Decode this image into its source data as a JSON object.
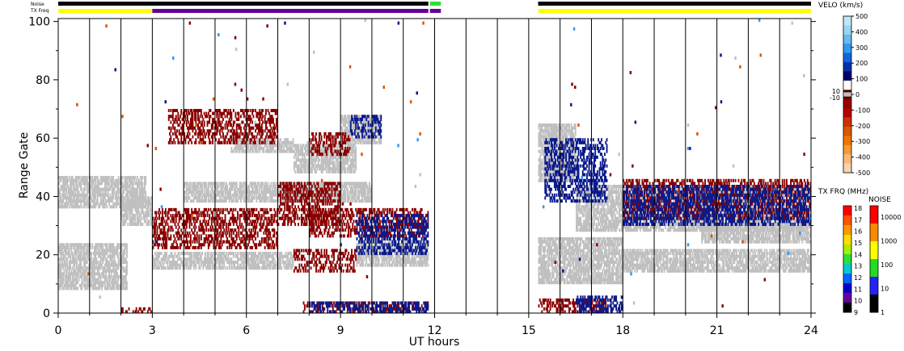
{
  "chart_data": {
    "type": "heatmap",
    "title": "",
    "xlabel": "UT hours",
    "ylabel": "Range Gate",
    "xlim": [
      0,
      24
    ],
    "ylim": [
      0,
      101
    ],
    "x_ticks": [
      "0",
      "3",
      "6",
      "9",
      "12",
      "15",
      "18",
      "21",
      "24"
    ],
    "x_tick_values": [
      0,
      3,
      6,
      9,
      12,
      15,
      18,
      21,
      24
    ],
    "y_ticks": [
      "0",
      "20",
      "40",
      "60",
      "80",
      "100"
    ],
    "y_tick_values": [
      0,
      20,
      40,
      60,
      80,
      100
    ],
    "grid_x_hours": [
      1,
      2,
      3,
      4,
      5,
      6,
      7,
      8,
      9,
      10,
      11,
      12,
      13,
      14,
      15,
      16,
      17,
      18,
      19,
      20,
      21,
      22,
      23
    ],
    "status_bars": {
      "noise": {
        "label": "Noise",
        "segments": [
          {
            "start": 0,
            "end": 11.8,
            "color": "#000000"
          },
          {
            "start": 11.85,
            "end": 12.2,
            "color": "#33dd33"
          },
          {
            "start": 15.3,
            "end": 24,
            "color": "#000000"
          }
        ]
      },
      "txfreq": {
        "label": "TX Freq",
        "segments": [
          {
            "start": 0,
            "end": 3.0,
            "color": "#ffff00"
          },
          {
            "start": 3.0,
            "end": 11.8,
            "color": "#660099"
          },
          {
            "start": 11.85,
            "end": 12.2,
            "color": "#660099"
          },
          {
            "start": 15.3,
            "end": 24,
            "color": "#ffff00"
          }
        ]
      }
    },
    "velocity_scale": {
      "label": "VELO (km/s)",
      "ticks": [
        "500",
        "400",
        "300",
        "200",
        "100",
        "0",
        "-100",
        "-200",
        "-300",
        "-400",
        "-500"
      ],
      "tick_values": [
        500,
        400,
        300,
        200,
        100,
        0,
        -100,
        -200,
        -300,
        -400,
        -500
      ],
      "ground_scatter_ticks": [
        "10",
        "-10"
      ],
      "colors": [
        "#bfe6f7",
        "#99d6f0",
        "#66bbf0",
        "#3399ee",
        "#1166dd",
        "#0033aa",
        "#000066",
        "#ffffff",
        "#660000",
        "#990000",
        "#b30000",
        "#cc3300",
        "#dd5500",
        "#ee7700",
        "#f59933",
        "#f9b877",
        "#fbd5aa"
      ]
    },
    "txfreq_scale": {
      "label": "TX FRQ (MHz)",
      "ticks": [
        "18",
        "17",
        "16",
        "15",
        "14",
        "13",
        "12",
        "11",
        "10",
        "9"
      ],
      "colors": [
        "#ff0000",
        "#ff5500",
        "#ff9900",
        "#ffdd00",
        "#aaee00",
        "#33dd33",
        "#00cccc",
        "#0066ff",
        "#0000cc",
        "#660099",
        "#000000"
      ]
    },
    "noise_scale": {
      "label": "NOISE",
      "ticks": [
        "10000",
        "1000",
        "100",
        "10",
        "1"
      ],
      "colors": [
        "#ff0000",
        "#ff8800",
        "#ffff00",
        "#22dd22",
        "#2222ff",
        "#000000"
      ]
    },
    "series": [
      {
        "kind": "ground-scatter",
        "color": "#c0c0c0",
        "bands": [
          {
            "t0": 0,
            "t1": 2.8,
            "g0": 36,
            "g1": 47
          },
          {
            "t0": 0,
            "t1": 2.2,
            "g0": 8,
            "g1": 24
          },
          {
            "t0": 2.0,
            "t1": 3.0,
            "g0": 30,
            "g1": 40
          },
          {
            "t0": 3.0,
            "t1": 7.5,
            "g0": 15,
            "g1": 21
          },
          {
            "t0": 4.0,
            "t1": 10.0,
            "g0": 38,
            "g1": 45
          },
          {
            "t0": 5.5,
            "t1": 7.5,
            "g0": 55,
            "g1": 60
          },
          {
            "t0": 7.5,
            "t1": 9.5,
            "g0": 48,
            "g1": 58
          },
          {
            "t0": 9.0,
            "t1": 10.3,
            "g0": 58,
            "g1": 68
          },
          {
            "t0": 9.5,
            "t1": 11.8,
            "g0": 16,
            "g1": 25
          },
          {
            "t0": 15.3,
            "t1": 16.5,
            "g0": 45,
            "g1": 65
          },
          {
            "t0": 16.5,
            "t1": 24,
            "g0": 28,
            "g1": 44
          },
          {
            "t0": 15.3,
            "t1": 18.0,
            "g0": 10,
            "g1": 26
          },
          {
            "t0": 18.0,
            "t1": 24,
            "g0": 14,
            "g1": 22
          },
          {
            "t0": 20.5,
            "t1": 24,
            "g0": 24,
            "g1": 30
          }
        ]
      },
      {
        "kind": "negative-velocity",
        "color": "#8b0000",
        "bands": [
          {
            "t0": 3.5,
            "t1": 7.0,
            "g0": 58,
            "g1": 70
          },
          {
            "t0": 3.0,
            "t1": 7.0,
            "g0": 22,
            "g1": 36
          },
          {
            "t0": 7.0,
            "t1": 9.0,
            "g0": 30,
            "g1": 45
          },
          {
            "t0": 7.5,
            "t1": 9.5,
            "g0": 14,
            "g1": 22
          },
          {
            "t0": 8.0,
            "t1": 11.8,
            "g0": 26,
            "g1": 36
          },
          {
            "t0": 8.0,
            "t1": 9.3,
            "g0": 54,
            "g1": 62
          },
          {
            "t0": 7.8,
            "t1": 11.8,
            "g0": 0,
            "g1": 4
          },
          {
            "t0": 2.0,
            "t1": 3.0,
            "g0": 0,
            "g1": 2
          },
          {
            "t0": 15.3,
            "t1": 17.5,
            "g0": 0,
            "g1": 5
          },
          {
            "t0": 18.0,
            "t1": 24,
            "g0": 32,
            "g1": 46
          }
        ]
      },
      {
        "kind": "positive-velocity",
        "color": "#0b1a8c",
        "bands": [
          {
            "t0": 9.3,
            "t1": 10.3,
            "g0": 60,
            "g1": 68
          },
          {
            "t0": 9.5,
            "t1": 11.8,
            "g0": 20,
            "g1": 34
          },
          {
            "t0": 8.0,
            "t1": 11.8,
            "g0": 0,
            "g1": 4
          },
          {
            "t0": 15.5,
            "t1": 17.5,
            "g0": 38,
            "g1": 60
          },
          {
            "t0": 16.5,
            "t1": 18.0,
            "g0": 0,
            "g1": 6
          },
          {
            "t0": 18.0,
            "t1": 24,
            "g0": 30,
            "g1": 44
          }
        ]
      }
    ]
  }
}
